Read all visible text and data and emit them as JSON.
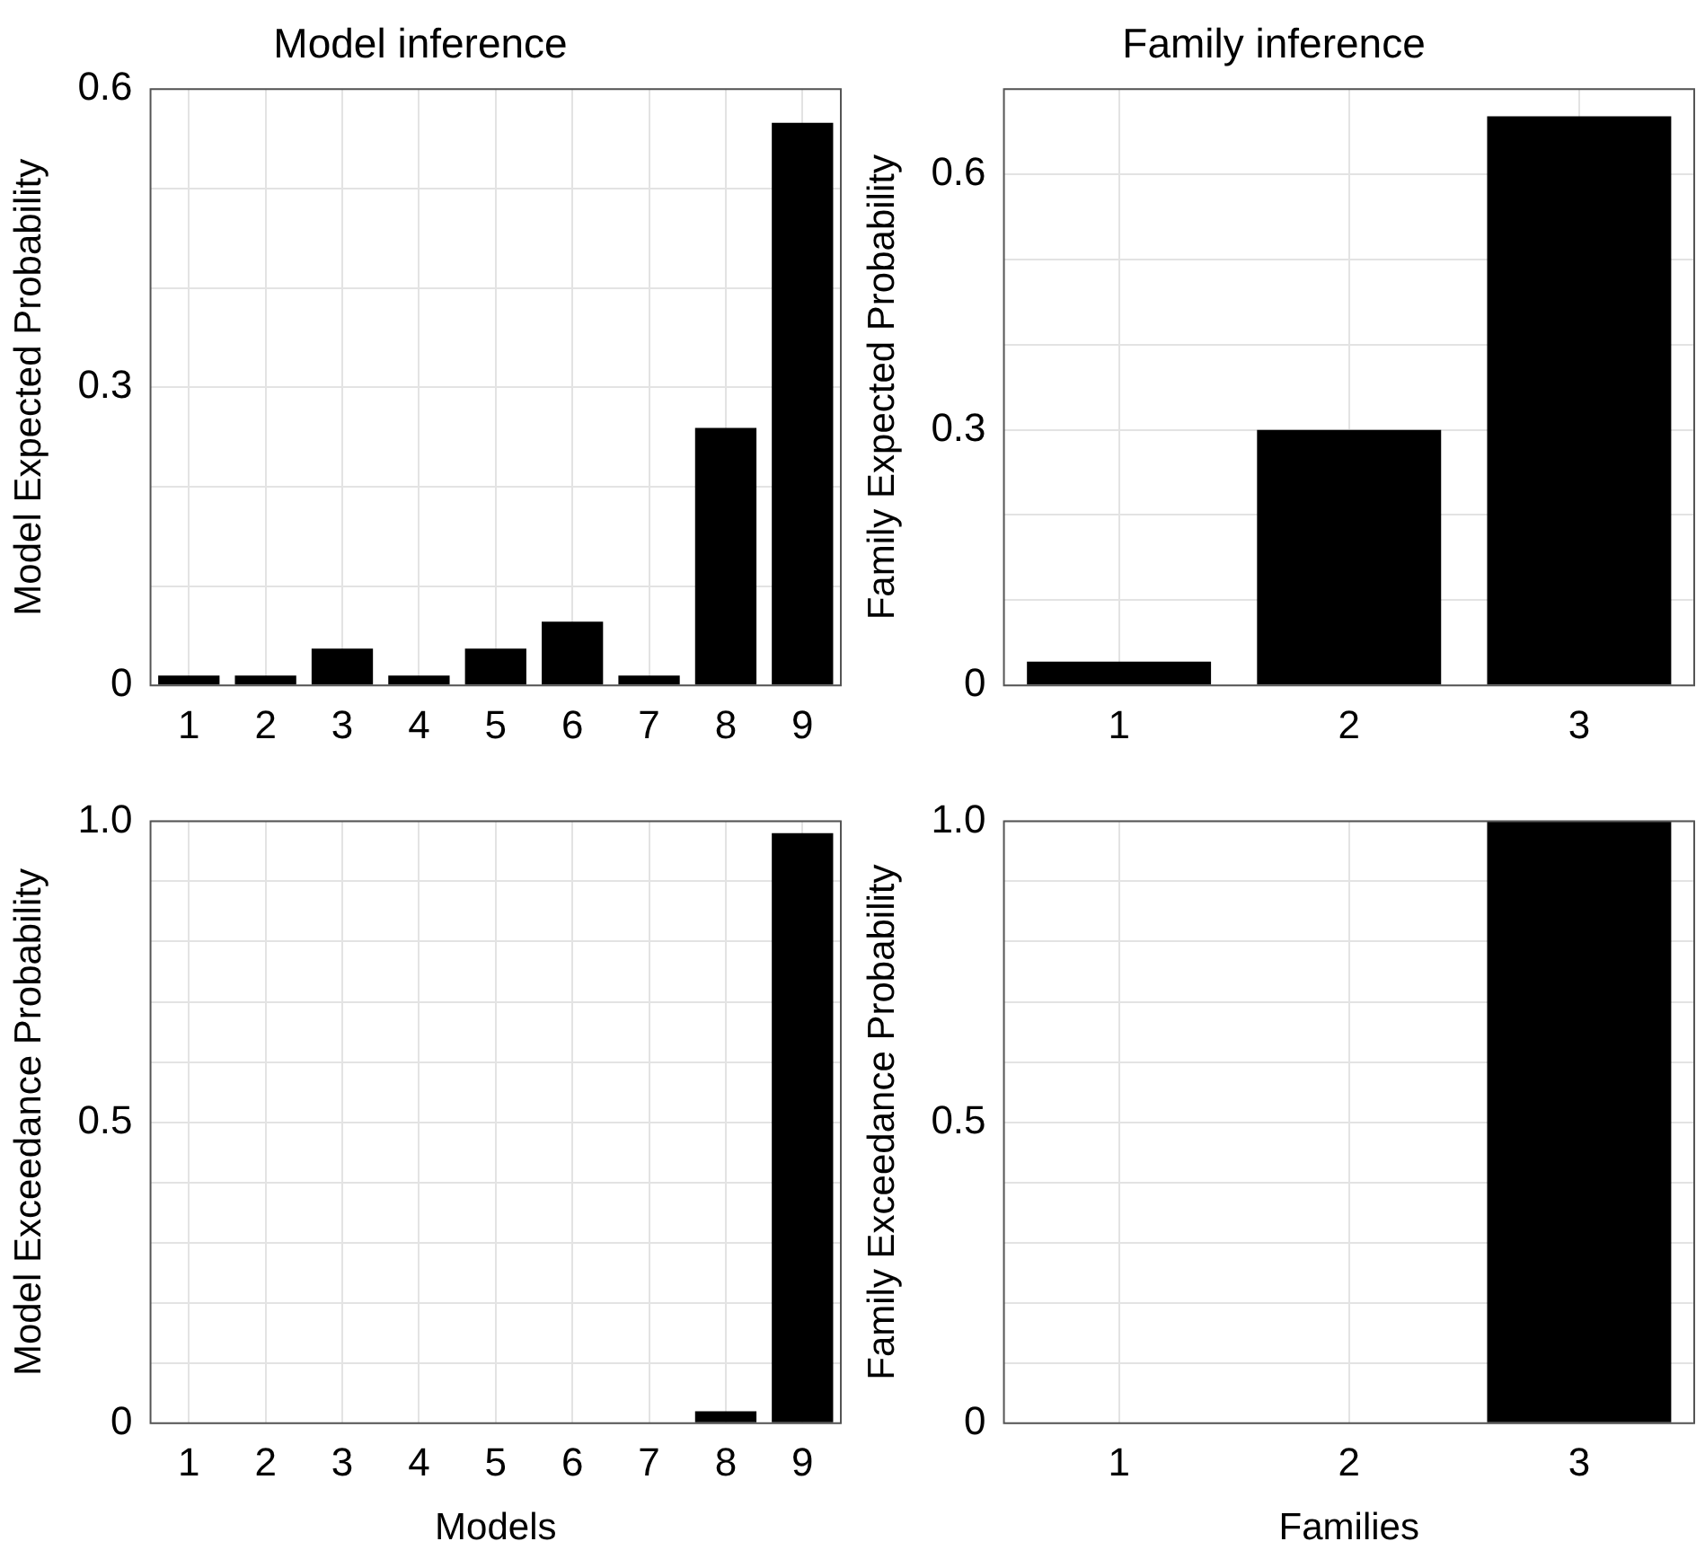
{
  "chart_data": [
    {
      "type": "bar",
      "title": "Model inference",
      "ylabel": "Model Expected Probability",
      "categories": [
        "1",
        "2",
        "3",
        "4",
        "5",
        "6",
        "7",
        "8",
        "9"
      ],
      "values": [
        0.01,
        0.01,
        0.037,
        0.01,
        0.037,
        0.064,
        0.01,
        0.259,
        0.566
      ],
      "color": "#000000",
      "ylim": [
        0,
        0.6
      ],
      "yticks": [
        0,
        {
          "value": 0.1,
          "label": null
        },
        {
          "value": 0.2,
          "label": null
        },
        0.3,
        {
          "value": 0.4,
          "label": null
        },
        {
          "value": 0.5,
          "label": null
        },
        0.6
      ],
      "grid": true
    },
    {
      "type": "bar",
      "title": "Family inference",
      "ylabel": "Family Expected Probability",
      "categories": [
        "1",
        "2",
        "3"
      ],
      "values": [
        0.028,
        0.3,
        0.668
      ],
      "color": "#000000",
      "ylim": [
        0,
        0.7
      ],
      "yticks": [
        0,
        {
          "value": 0.1,
          "label": null
        },
        {
          "value": 0.2,
          "label": null
        },
        0.3,
        {
          "value": 0.4,
          "label": null
        },
        {
          "value": 0.5,
          "label": null
        },
        0.6,
        {
          "value": 0.7,
          "label": null
        }
      ],
      "grid": true
    },
    {
      "type": "bar",
      "xlabel": "Models",
      "ylabel": "Model Exceedance Probability",
      "categories": [
        "1",
        "2",
        "3",
        "4",
        "5",
        "6",
        "7",
        "8",
        "9"
      ],
      "values": [
        0,
        0,
        0,
        0,
        0,
        0,
        0,
        0.02,
        0.98
      ],
      "color": "#000000",
      "ylim": [
        0,
        1.0
      ],
      "yticks": [
        0,
        {
          "value": 0.1,
          "label": null
        },
        {
          "value": 0.2,
          "label": null
        },
        {
          "value": 0.3,
          "label": null
        },
        {
          "value": 0.4,
          "label": null
        },
        0.5,
        {
          "value": 0.6,
          "label": null
        },
        {
          "value": 0.7,
          "label": null
        },
        {
          "value": 0.8,
          "label": null
        },
        {
          "value": 0.9,
          "label": null
        },
        {
          "value": 1.0,
          "label": "1.0"
        }
      ],
      "grid": true
    },
    {
      "type": "bar",
      "xlabel": "Families",
      "ylabel": "Family Exceedance Probability",
      "categories": [
        "1",
        "2",
        "3"
      ],
      "values": [
        0,
        0,
        1.0
      ],
      "color": "#000000",
      "ylim": [
        0,
        1.0
      ],
      "yticks": [
        0,
        {
          "value": 0.1,
          "label": null
        },
        {
          "value": 0.2,
          "label": null
        },
        {
          "value": 0.3,
          "label": null
        },
        {
          "value": 0.4,
          "label": null
        },
        0.5,
        {
          "value": 0.6,
          "label": null
        },
        {
          "value": 0.7,
          "label": null
        },
        {
          "value": 0.8,
          "label": null
        },
        {
          "value": 0.9,
          "label": null
        },
        {
          "value": 1.0,
          "label": "1.0"
        }
      ],
      "grid": true
    }
  ]
}
